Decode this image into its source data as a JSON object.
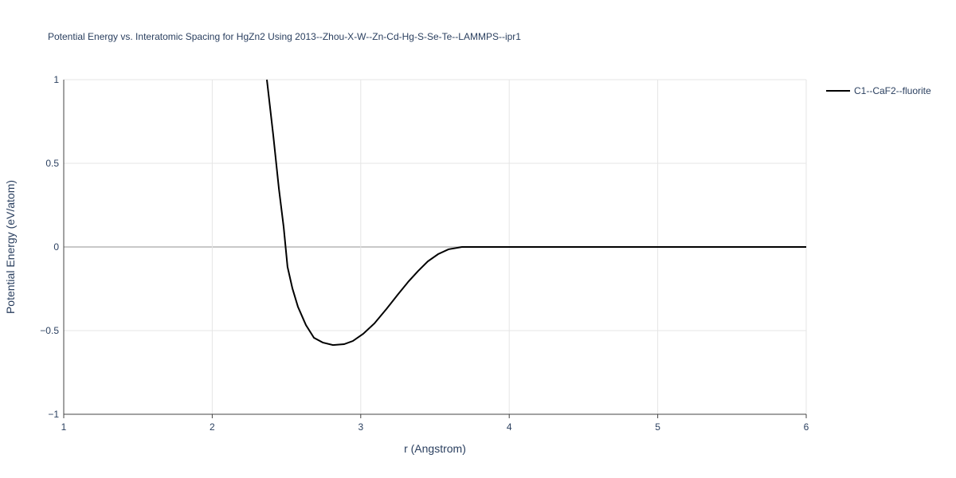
{
  "chart_data": {
    "type": "line",
    "title": "Potential Energy vs. Interatomic Spacing for HgZn2 Using 2013--Zhou-X-W--Zn-Cd-Hg-S-Se-Te--LAMMPS--ipr1",
    "x_label": "r (Angstrom)",
    "y_label": "Potential Energy (eV/atom)",
    "xlim": [
      1,
      6
    ],
    "ylim": [
      -1,
      1
    ],
    "xticks": [
      1,
      2,
      3,
      4,
      5,
      6
    ],
    "yticks": [
      {
        "value": -1,
        "label": "−1"
      },
      {
        "value": -0.5,
        "label": "−0.5"
      },
      0,
      0.5,
      1
    ],
    "grid": true,
    "legend": "top-right",
    "series": [
      {
        "name": "C1--CaF2--fluorite",
        "color": "#000000",
        "x": [
          2.368,
          2.411,
          2.449,
          2.481,
          2.507,
          2.54,
          2.577,
          2.631,
          2.685,
          2.744,
          2.813,
          2.888,
          2.947,
          3.017,
          3.092,
          3.173,
          3.253,
          3.323,
          3.387,
          3.452,
          3.521,
          3.591,
          3.682,
          4.0,
          5.0,
          6.0
        ],
        "values": [
          1.0,
          0.667,
          0.348,
          0.119,
          -0.119,
          -0.248,
          -0.357,
          -0.467,
          -0.543,
          -0.571,
          -0.586,
          -0.581,
          -0.562,
          -0.519,
          -0.457,
          -0.371,
          -0.281,
          -0.205,
          -0.143,
          -0.086,
          -0.043,
          -0.014,
          0,
          0,
          0,
          0
        ]
      }
    ]
  }
}
